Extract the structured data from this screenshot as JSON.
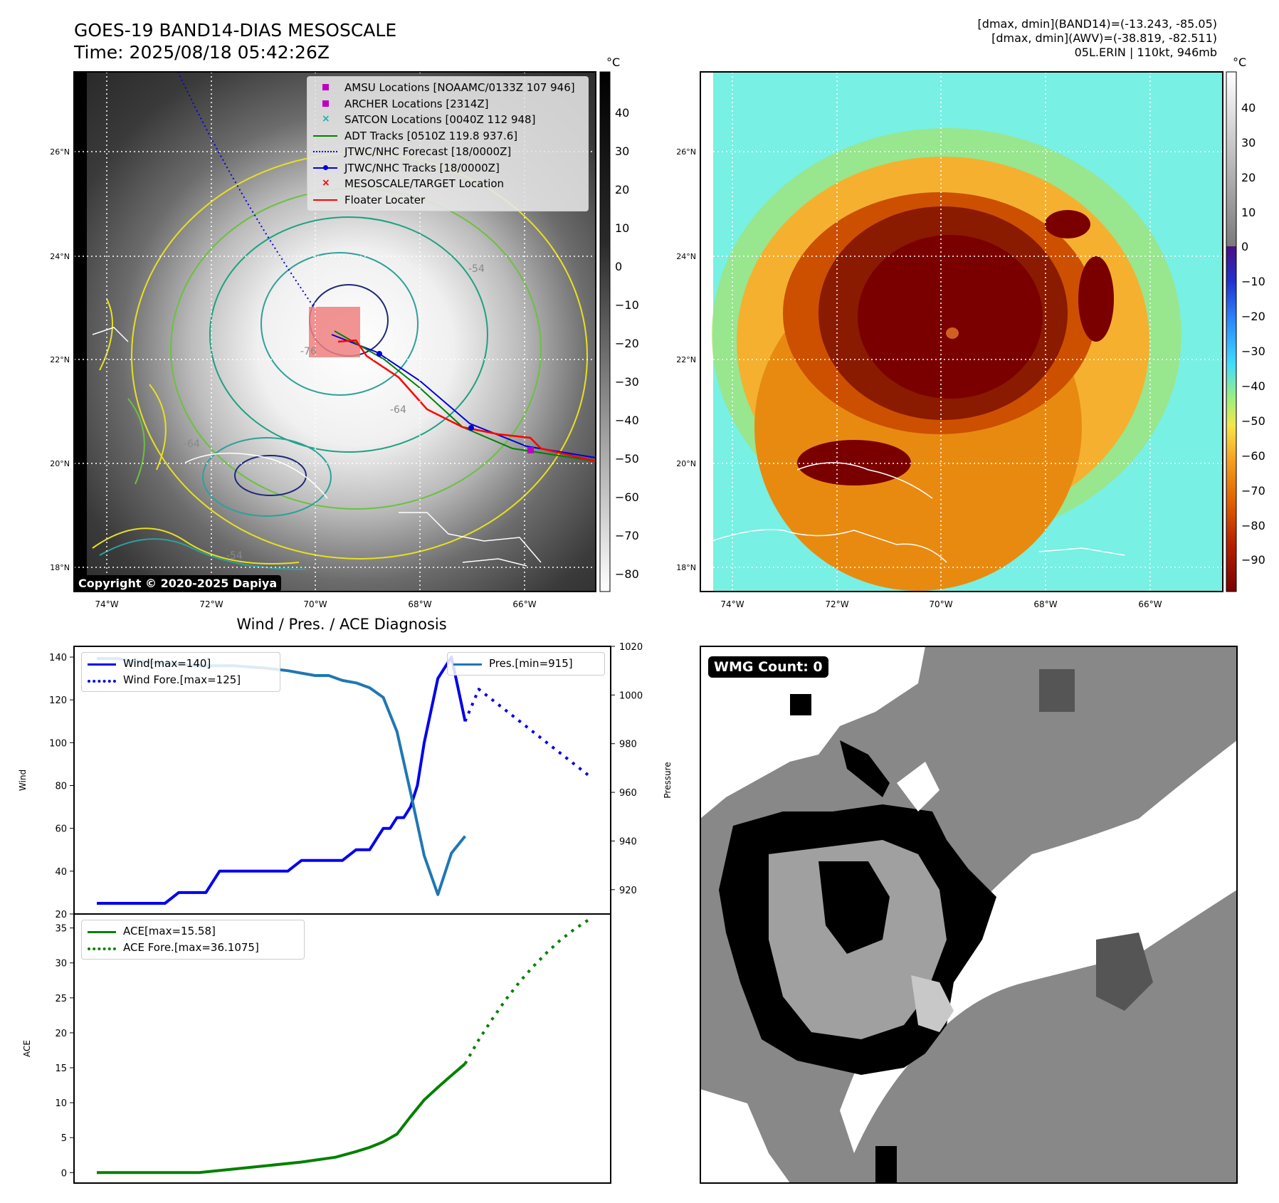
{
  "header": {
    "title_line1": "GOES-19 BAND14-DIAS MESOSCALE",
    "title_line2": "Time: 2025/08/18 05:42:26Z",
    "right_line1": "[dmax, dmin](BAND14)=(-13.243, -85.05)",
    "right_line2": "[dmax, dmin](AWV)=(-38.819, -82.511)",
    "right_line3": "05L.ERIN | 110kt, 946mb"
  },
  "map_panel": {
    "copyright": "Copyright © 2020-2025 Dapiya",
    "lat_labels": [
      "26°N",
      "24°N",
      "22°N",
      "20°N",
      "18°N"
    ],
    "lon_labels": [
      "74°W",
      "72°W",
      "70°W",
      "68°W",
      "66°W"
    ],
    "contour_labels": [
      "-76",
      "-64",
      "-54",
      "-64",
      "-54"
    ],
    "legend": [
      {
        "label": "AMSU Locations [NOAAMC/0133Z 107 946]",
        "marker": "square",
        "color": "#c000c0"
      },
      {
        "label": "ARCHER Locations [2314Z]",
        "marker": "square",
        "color": "#c000c0"
      },
      {
        "label": "SATCON Locations [0040Z 112 948]",
        "marker": "x",
        "color": "#20b0b0"
      },
      {
        "label": "ADT Tracks [0510Z 119.8 937.6]",
        "marker": "line",
        "color": "#008000"
      },
      {
        "label": "JTWC/NHC Forecast [18/0000Z]",
        "marker": "dotted",
        "color": "#0000dd"
      },
      {
        "label": "JTWC/NHC Tracks [18/0000Z]",
        "marker": "line-dot",
        "color": "#0000dd"
      },
      {
        "label": "MESOSCALE/TARGET Location",
        "marker": "x",
        "color": "#ff0000"
      },
      {
        "label": "Floater Locater",
        "marker": "line",
        "color": "#ff0000"
      }
    ],
    "colorbar_unit": "°C",
    "colorbar_ticks": [
      "40",
      "30",
      "20",
      "10",
      "0",
      "−10",
      "−20",
      "−30",
      "−40",
      "−50",
      "−60",
      "−70",
      "−80"
    ]
  },
  "awv_panel": {
    "colorbar_unit": "°C",
    "colorbar_ticks": [
      "40",
      "30",
      "20",
      "10",
      "0",
      "−10",
      "−20",
      "−30",
      "−40",
      "−50",
      "−60",
      "−70",
      "−80",
      "−90"
    ]
  },
  "wmg_panel": {
    "badge": "WMG Count: 0"
  },
  "chart_data": [
    {
      "type": "line",
      "title": "Wind / Pres. / ACE Diagnosis",
      "ylabel": "Wind",
      "ylabel_right": "Pressure",
      "ylim": [
        20,
        145
      ],
      "ylim_right": [
        910,
        1020
      ],
      "yticks": [
        20,
        40,
        60,
        80,
        100,
        120,
        140
      ],
      "yticks_right": [
        920,
        940,
        960,
        980,
        1000,
        1020
      ],
      "x_max": 72,
      "series": [
        {
          "name": "Wind[max=140]",
          "style": "solid",
          "color": "#0000ee",
          "x": [
            0,
            4,
            8,
            10,
            12,
            14,
            16,
            18,
            20,
            22,
            24,
            26,
            28,
            30,
            32,
            34,
            36,
            38,
            40,
            41,
            42,
            43,
            44,
            45,
            46,
            47,
            48,
            50,
            52,
            54
          ],
          "values": [
            25,
            25,
            25,
            25,
            30,
            30,
            30,
            40,
            40,
            40,
            40,
            40,
            40,
            45,
            45,
            45,
            45,
            50,
            50,
            55,
            60,
            60,
            65,
            65,
            70,
            80,
            100,
            130,
            140,
            110
          ]
        },
        {
          "name": "Wind Fore.[max=125]",
          "style": "dotted",
          "color": "#0000ee",
          "x": [
            54,
            56,
            58,
            60,
            62,
            64,
            66,
            68,
            70,
            72
          ],
          "values": [
            110,
            125,
            120,
            115,
            110,
            105,
            100,
            95,
            90,
            85
          ]
        },
        {
          "name": "Pres.[min=915]",
          "style": "solid",
          "color": "#1f77b4",
          "axis": "right",
          "x": [
            0,
            3,
            5,
            10,
            15,
            20,
            25,
            28,
            30,
            32,
            34,
            36,
            38,
            40,
            42,
            44,
            46,
            48,
            50,
            52,
            54
          ],
          "values": [
            1015,
            1015,
            1014,
            1013,
            1012,
            1012,
            1011,
            1010,
            1009,
            1008,
            1008,
            1006,
            1005,
            1003,
            999,
            985,
            960,
            934,
            918,
            935,
            942
          ]
        }
      ],
      "legend_left": [
        "Wind[max=140]",
        "Wind Fore.[max=125]"
      ],
      "legend_right": [
        "Pres.[min=915]"
      ]
    },
    {
      "type": "line",
      "ylabel": "ACE",
      "ylim": [
        -1.5,
        37
      ],
      "yticks": [
        0,
        5,
        10,
        15,
        20,
        25,
        30,
        35
      ],
      "x_max": 72,
      "series": [
        {
          "name": "ACE[max=15.58]",
          "style": "solid",
          "color": "#008000",
          "x": [
            0,
            5,
            10,
            15,
            20,
            25,
            30,
            35,
            38,
            40,
            42,
            44,
            46,
            48,
            50,
            52,
            54
          ],
          "values": [
            0,
            0,
            0,
            0,
            0.5,
            1,
            1.5,
            2.2,
            3,
            3.6,
            4.4,
            5.5,
            8,
            10.4,
            12.2,
            13.9,
            15.58
          ]
        },
        {
          "name": "ACE Fore.[max=36.1075]",
          "style": "dotted",
          "color": "#008000",
          "x": [
            54,
            56,
            58,
            60,
            62,
            64,
            66,
            68,
            70,
            72
          ],
          "values": [
            15.58,
            19,
            22,
            24.8,
            27.3,
            29.5,
            31.5,
            33.3,
            34.8,
            36.1075
          ]
        }
      ]
    }
  ]
}
